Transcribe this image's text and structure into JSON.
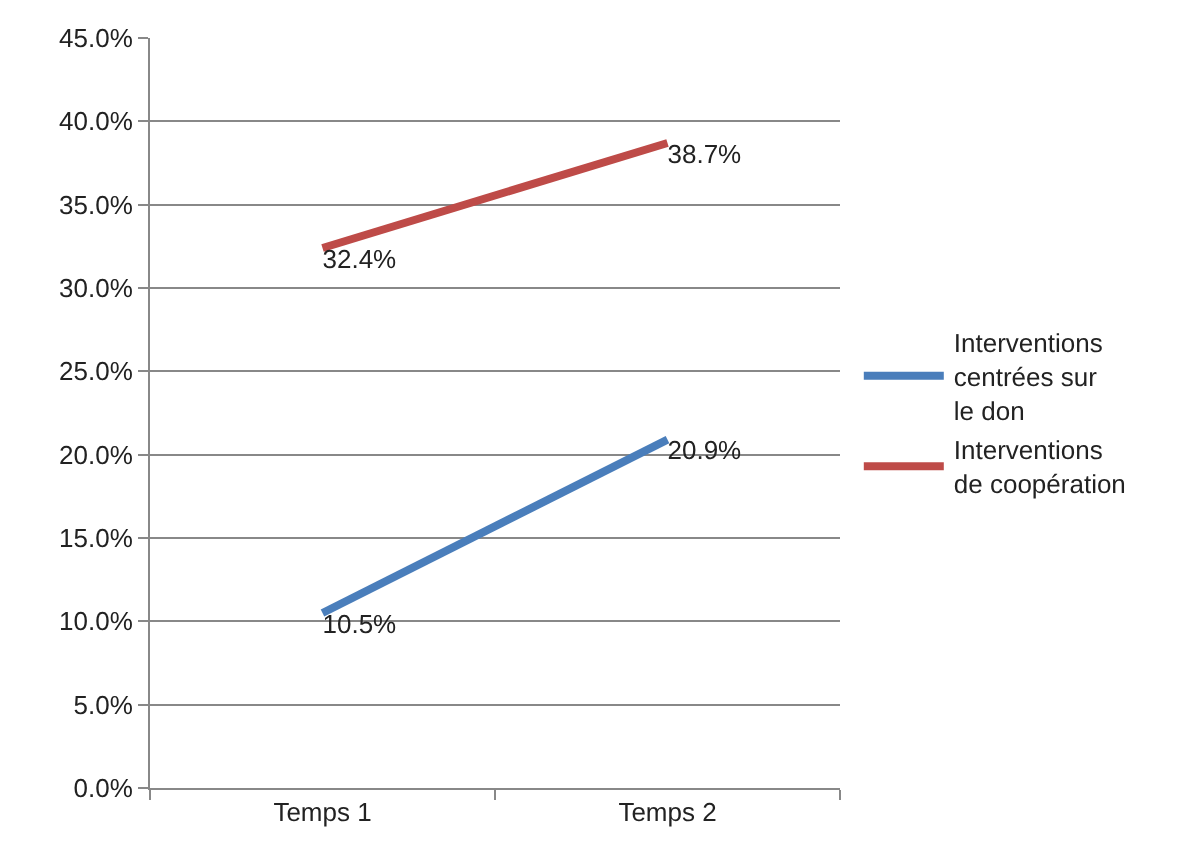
{
  "chart_data": {
    "type": "line",
    "categories": [
      "Temps 1",
      "Temps 2"
    ],
    "series": [
      {
        "name": "Interventions centrées sur le don",
        "color": "#4a7ebb",
        "values": [
          10.5,
          20.9
        ],
        "value_labels": [
          "10.5%",
          "20.9%"
        ]
      },
      {
        "name": "Interventions de coopération",
        "color": "#be4b48",
        "values": [
          32.4,
          38.7
        ],
        "value_labels": [
          "32.4%",
          "38.7%"
        ]
      }
    ],
    "ylim": [
      0,
      45
    ],
    "yticks": [
      {
        "value": 0,
        "label": "0.0%"
      },
      {
        "value": 5,
        "label": "5.0%"
      },
      {
        "value": 10,
        "label": "10.0%"
      },
      {
        "value": 15,
        "label": "15.0%"
      },
      {
        "value": 20,
        "label": "20.0%"
      },
      {
        "value": 25,
        "label": "25.0%"
      },
      {
        "value": 30,
        "label": "30.0%"
      },
      {
        "value": 35,
        "label": "35.0%"
      },
      {
        "value": 40,
        "label": "40.0%"
      },
      {
        "value": 45,
        "label": "45.0%"
      }
    ],
    "grid": "y",
    "legend": "right",
    "marker": "none",
    "line_style": "solid"
  }
}
